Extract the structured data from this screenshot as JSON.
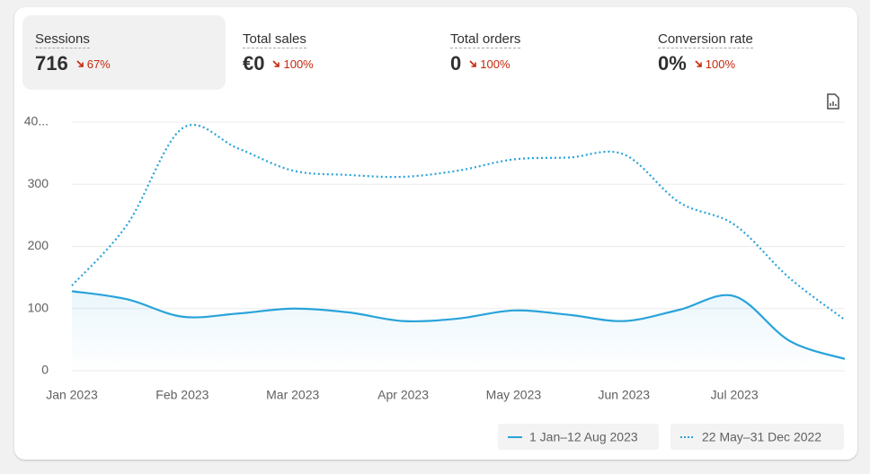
{
  "metrics": [
    {
      "title": "Sessions",
      "value": "716",
      "change": "67%"
    },
    {
      "title": "Total sales",
      "value": "€0",
      "change": "100%"
    },
    {
      "title": "Total orders",
      "value": "0",
      "change": "100%"
    },
    {
      "title": "Conversion rate",
      "value": "0%",
      "change": "100%"
    }
  ],
  "chart_data": {
    "type": "line",
    "categories": [
      "Jan 2023",
      null,
      "Feb 2023",
      null,
      "Mar 2023",
      null,
      "Apr 2023",
      null,
      "May 2023",
      null,
      "Jun 2023",
      null,
      "Jul 2023",
      null,
      null
    ],
    "series": [
      {
        "name": "1 Jan–12 Aug 2023",
        "color": "#29a3d9",
        "style": "solid",
        "values": [
          128,
          115,
          87,
          92,
          100,
          94,
          80,
          84,
          97,
          90,
          80,
          98,
          120,
          48,
          19
        ]
      },
      {
        "name": "22 May–31 Dec 2022",
        "color": "#29a3d9",
        "style": "dotted",
        "values": [
          137,
          235,
          390,
          358,
          322,
          315,
          312,
          322,
          340,
          343,
          348,
          271,
          235,
          149,
          82
        ]
      }
    ],
    "ylim": [
      0,
      400
    ],
    "yticks": [
      0,
      100,
      200,
      300,
      {
        "value": 400,
        "label": "40..."
      }
    ],
    "grid": true
  }
}
